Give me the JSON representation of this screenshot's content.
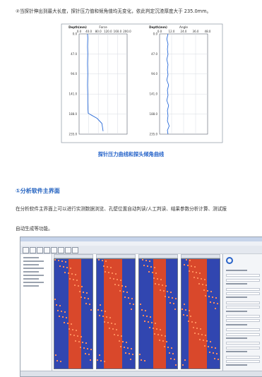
{
  "intro_text": "②当探针伸出到最大长度，探针压力值和倾角值均无变化，依此判定沉渣厚度大于 235.0mm。",
  "figure_caption": "探针压力曲线和探头倾角曲线",
  "section_heading": "①分析软件主界面",
  "body_text_1": "在分析软件主界面上可以进行实测数据浏览、孔壁位置自动判读/人工判读、结果参数分析计算、测试报",
  "body_text_2": "自动生成等功能。",
  "colors": {
    "accent_blue": "#1f5fbf",
    "chart_line": "#2a6bd8",
    "track_fill": "#3146b0",
    "track_band": "#d9482b"
  },
  "chart_data": [
    {
      "type": "line",
      "title": "Force",
      "ylabel": "Depth(mm)",
      "xlim": [
        0.0,
        200.0
      ],
      "ylim": [
        235.0,
        0.0
      ],
      "xticks": [
        "0.0",
        "40.0",
        "80.0",
        "120.0",
        "160.0",
        "200.0"
      ],
      "yticks": [
        "0.0",
        "47.0",
        "94.0",
        "141.0",
        "188.0",
        "235.0"
      ],
      "x": [
        35,
        36,
        35,
        36,
        35,
        36,
        35,
        36,
        36,
        37,
        38,
        50,
        75,
        95,
        100
      ],
      "y": [
        0,
        10,
        30,
        47,
        70,
        94,
        120,
        141,
        160,
        178,
        186,
        190,
        198,
        210,
        228
      ],
      "grid": true
    },
    {
      "type": "line",
      "title": "Angle",
      "ylabel": "Depth(mm)",
      "xlim": [
        0.0,
        40.0
      ],
      "ylim": [
        235.0,
        0.0
      ],
      "xticks": [
        "0.0",
        "12.0",
        "24.0",
        "36.0",
        "48.0"
      ],
      "yticks": [
        "0.0",
        "47.0",
        "94.0",
        "141.0",
        "188.0",
        "235.0"
      ],
      "x": [
        7,
        6,
        7,
        6.5,
        7,
        6,
        7,
        6.5,
        7,
        6,
        7.5,
        6.5,
        7,
        6,
        7.5,
        6.5,
        7,
        6.5,
        8,
        6.5,
        7
      ],
      "y": [
        0,
        12,
        24,
        36,
        48,
        60,
        72,
        84,
        96,
        108,
        120,
        132,
        144,
        156,
        168,
        180,
        192,
        204,
        216,
        226,
        235
      ],
      "grid": true
    }
  ],
  "software": {
    "tracks": [
      {
        "name": ""
      },
      {
        "name": ""
      },
      {
        "name": ""
      },
      {
        "name": ""
      }
    ],
    "panel_rows": 22
  }
}
